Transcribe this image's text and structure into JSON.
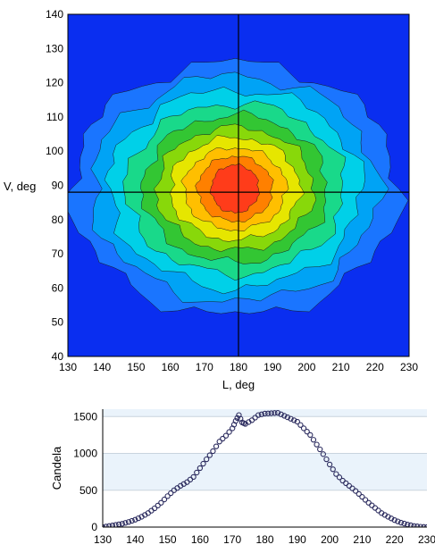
{
  "chart_data": [
    {
      "type": "heatmap",
      "subtype": "filled-contour",
      "title": "",
      "xlabel": "L, deg",
      "ylabel": "V, deg",
      "xlim": [
        130,
        230
      ],
      "ylim": [
        40,
        140
      ],
      "x_ticks": [
        "130",
        "140",
        "150",
        "160",
        "170",
        "180",
        "190",
        "200",
        "210",
        "220",
        "230"
      ],
      "y_ticks": [
        "40",
        "50",
        "60",
        "70",
        "80",
        "90",
        "100",
        "110",
        "120",
        "130",
        "140"
      ],
      "crosshair": {
        "x": 180,
        "y": 88
      },
      "center": {
        "x": 179,
        "y": 89
      },
      "contours": [
        {
          "rx": 48,
          "ry": 37,
          "color": "#1a75ff"
        },
        {
          "rx": 42,
          "ry": 33,
          "color": "#00a3f5"
        },
        {
          "rx": 37,
          "ry": 29,
          "color": "#00d0e8"
        },
        {
          "rx": 32,
          "ry": 25,
          "color": "#19d98a"
        },
        {
          "rx": 27,
          "ry": 21.5,
          "color": "#33c633"
        },
        {
          "rx": 23,
          "ry": 18,
          "color": "#88d80a"
        },
        {
          "rx": 19,
          "ry": 15,
          "color": "#e6e600"
        },
        {
          "rx": 15,
          "ry": 12,
          "color": "#ffbf00"
        },
        {
          "rx": 11,
          "ry": 9.5,
          "color": "#ff8000"
        },
        {
          "rx": 7,
          "ry": 7,
          "color": "#ff3c1a"
        }
      ],
      "background_color": "#0a2ef0",
      "grid": false
    },
    {
      "type": "scatter",
      "title": "",
      "xlabel": "",
      "ylabel": "Candela",
      "xlim": [
        130,
        230
      ],
      "ylim": [
        0,
        1600
      ],
      "x_ticks": [
        "130",
        "140",
        "150",
        "160",
        "170",
        "180",
        "190",
        "200",
        "210",
        "220",
        "230"
      ],
      "y_ticks": [
        "0",
        "500",
        "1000",
        "1500"
      ],
      "grid": true,
      "points": [
        [
          130,
          0
        ],
        [
          132,
          15
        ],
        [
          134,
          30
        ],
        [
          136,
          45
        ],
        [
          138,
          70
        ],
        [
          140,
          100
        ],
        [
          142,
          140
        ],
        [
          144,
          190
        ],
        [
          146,
          255
        ],
        [
          148,
          330
        ],
        [
          150,
          420
        ],
        [
          152,
          500
        ],
        [
          154,
          560
        ],
        [
          156,
          610
        ],
        [
          158,
          680
        ],
        [
          160,
          800
        ],
        [
          162,
          920
        ],
        [
          164,
          1030
        ],
        [
          166,
          1160
        ],
        [
          168,
          1240
        ],
        [
          170,
          1340
        ],
        [
          171,
          1440
        ],
        [
          172,
          1520
        ],
        [
          173,
          1420
        ],
        [
          174,
          1400
        ],
        [
          176,
          1450
        ],
        [
          178,
          1520
        ],
        [
          180,
          1540
        ],
        [
          182,
          1545
        ],
        [
          184,
          1550
        ],
        [
          186,
          1510
        ],
        [
          188,
          1470
        ],
        [
          190,
          1430
        ],
        [
          192,
          1340
        ],
        [
          194,
          1250
        ],
        [
          196,
          1120
        ],
        [
          198,
          990
        ],
        [
          200,
          850
        ],
        [
          202,
          720
        ],
        [
          204,
          630
        ],
        [
          206,
          560
        ],
        [
          208,
          490
        ],
        [
          210,
          410
        ],
        [
          212,
          330
        ],
        [
          214,
          260
        ],
        [
          216,
          190
        ],
        [
          218,
          140
        ],
        [
          220,
          95
        ],
        [
          222,
          60
        ],
        [
          224,
          35
        ],
        [
          226,
          15
        ],
        [
          228,
          5
        ],
        [
          230,
          0
        ]
      ]
    }
  ]
}
